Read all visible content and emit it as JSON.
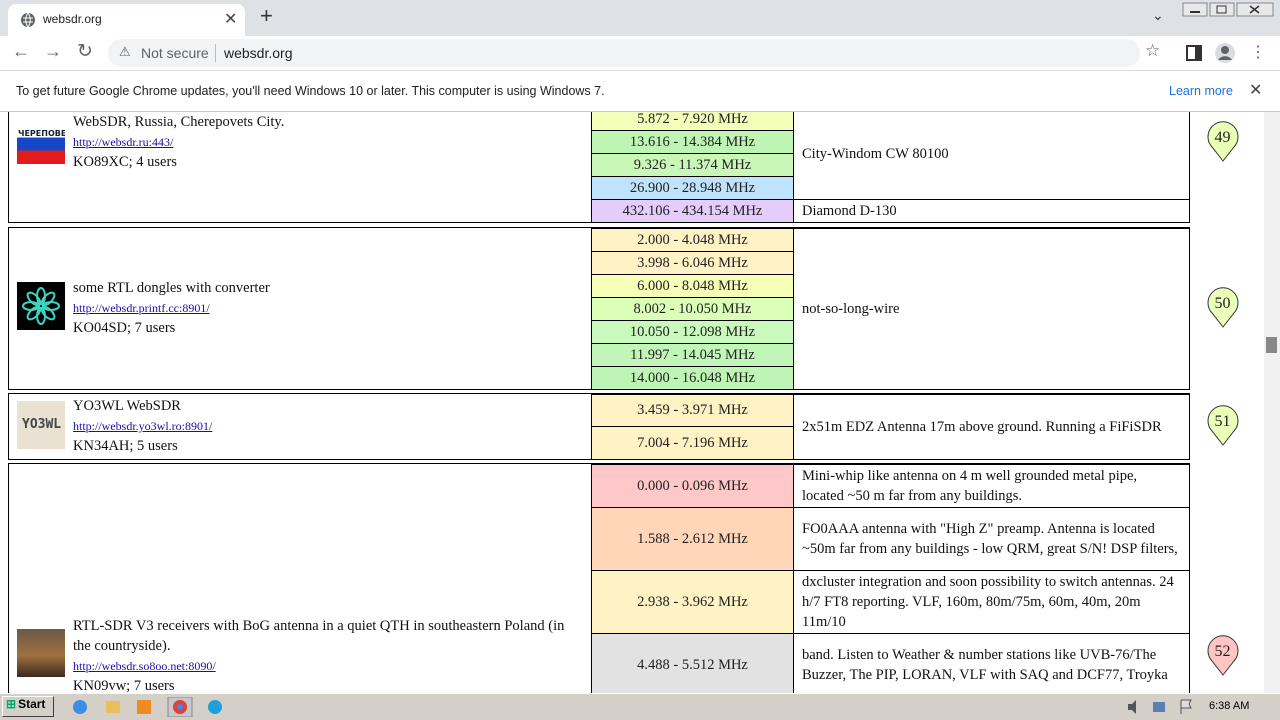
{
  "browser": {
    "tab_title": "websdr.org",
    "security": "Not secure",
    "url": "websdr.org"
  },
  "infobar": {
    "message": "To get future Google Chrome updates, you'll need Windows 10 or later. This computer is using Windows 7.",
    "link": "Learn more"
  },
  "stations": [
    {
      "logo_text": "ЧЕРЕПОВЕЦ",
      "name": "WebSDR, Russia, Cherepovets City.",
      "url": "http://websdr.ru:443/",
      "info": "KO89XC; 4 users",
      "badge": "49",
      "badge_color": "#eaffb8",
      "bands": [
        {
          "range": "5.872 - 7.920 MHz",
          "color": "#f3ffb8"
        },
        {
          "range": "13.616 - 14.384 MHz",
          "color": "#bff5b4"
        },
        {
          "range": "9.326 - 11.374 MHz",
          "color": "#c9f7b8"
        },
        {
          "range": "26.900 - 28.948 MHz",
          "color": "#bfe3fb"
        },
        {
          "range": "432.106 - 434.154 MHz",
          "color": "#e4ccfb"
        }
      ],
      "antennas": [
        "City-Windom CW 80100",
        "Diamond D-130"
      ]
    },
    {
      "name": "some RTL dongles with converter",
      "url": "http://websdr.printf.cc:8901/",
      "info": "KO04SD; 7 users",
      "badge": "50",
      "badge_color": "#eaffb8",
      "bands": [
        {
          "range": "2.000 - 4.048 MHz",
          "color": "#fff2c4"
        },
        {
          "range": "3.998 - 6.046 MHz",
          "color": "#fff2c4"
        },
        {
          "range": "6.000 - 8.048 MHz",
          "color": "#f6ffb8"
        },
        {
          "range": "8.002 - 10.050 MHz",
          "color": "#dcffb8"
        },
        {
          "range": "10.050 - 12.098 MHz",
          "color": "#c9f9bc"
        },
        {
          "range": "11.997 - 14.045 MHz",
          "color": "#c2f6b8"
        },
        {
          "range": "14.000 - 16.048 MHz",
          "color": "#bff5b4"
        }
      ],
      "antennas": [
        "not-so-long-wire"
      ]
    },
    {
      "logo_text": "YO3WL",
      "name": "YO3WL WebSDR",
      "url": "http://websdr.yo3wl.ro:8901/",
      "info": "KN34AH; 5 users",
      "badge": "51",
      "badge_color": "#eaffb8",
      "bands": [
        {
          "range": "3.459 - 3.971 MHz",
          "color": "#fff2c4"
        },
        {
          "range": "7.004 - 7.196 MHz",
          "color": "#fff2c4"
        }
      ],
      "antennas": [
        "2x51m EDZ Antenna 17m above ground. Running a FiFiSDR"
      ]
    },
    {
      "name": "RTL-SDR V3 receivers with BoG antenna in a quiet QTH in southeastern Poland (in the countryside).",
      "url": "http://websdr.so8oo.net:8090/",
      "info": "KN09vw; 7 users",
      "badge": "52",
      "badge_color": "#ffc4c4",
      "bands": [
        {
          "range": "0.000 - 0.096 MHz",
          "color": "#ffc8c8"
        },
        {
          "range": "1.588 - 2.612 MHz",
          "color": "#ffd6b8"
        },
        {
          "range": "2.938 - 3.962 MHz",
          "color": "#fff2c4"
        },
        {
          "range": "4.488 - 5.512 MHz",
          "color": "#e2e2e2"
        }
      ],
      "antennas": [
        "Mini-whip like antenna on 4 m well grounded metal pipe, located ~50 m far from any buildings.",
        "FO0AAA antenna with \"High Z\" preamp. Antenna is located ~50m far from any buildings - low QRM, great S/N! DSP filters,",
        "dxcluster integration and soon possibility to switch antennas. 24 h/7 FT8 reporting. VLF, 160m, 80m/75m, 60m, 40m, 20m 11m/10",
        "band. Listen to Weather & number stations like UVB-76/The Buzzer, The PIP, LORAN, VLF with SAQ and DCF77, Troyka"
      ]
    }
  ],
  "taskbar": {
    "start": "Start",
    "time": "6:38 AM"
  }
}
